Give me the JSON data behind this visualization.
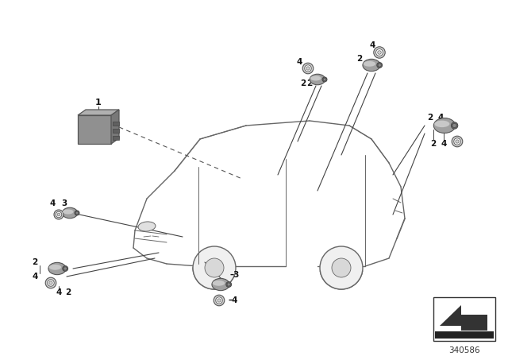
{
  "background_color": "#ffffff",
  "part_number": "340586",
  "fig_width": 6.4,
  "fig_height": 4.48,
  "dpi": 100,
  "car_color": "#888888",
  "line_color": "#444444",
  "module_color": "#909090",
  "sensor_color": "#a0a0a0",
  "sensor_dark": "#707070",
  "sensor_light": "#c8c8c8",
  "ring_color": "#b0b0b0"
}
